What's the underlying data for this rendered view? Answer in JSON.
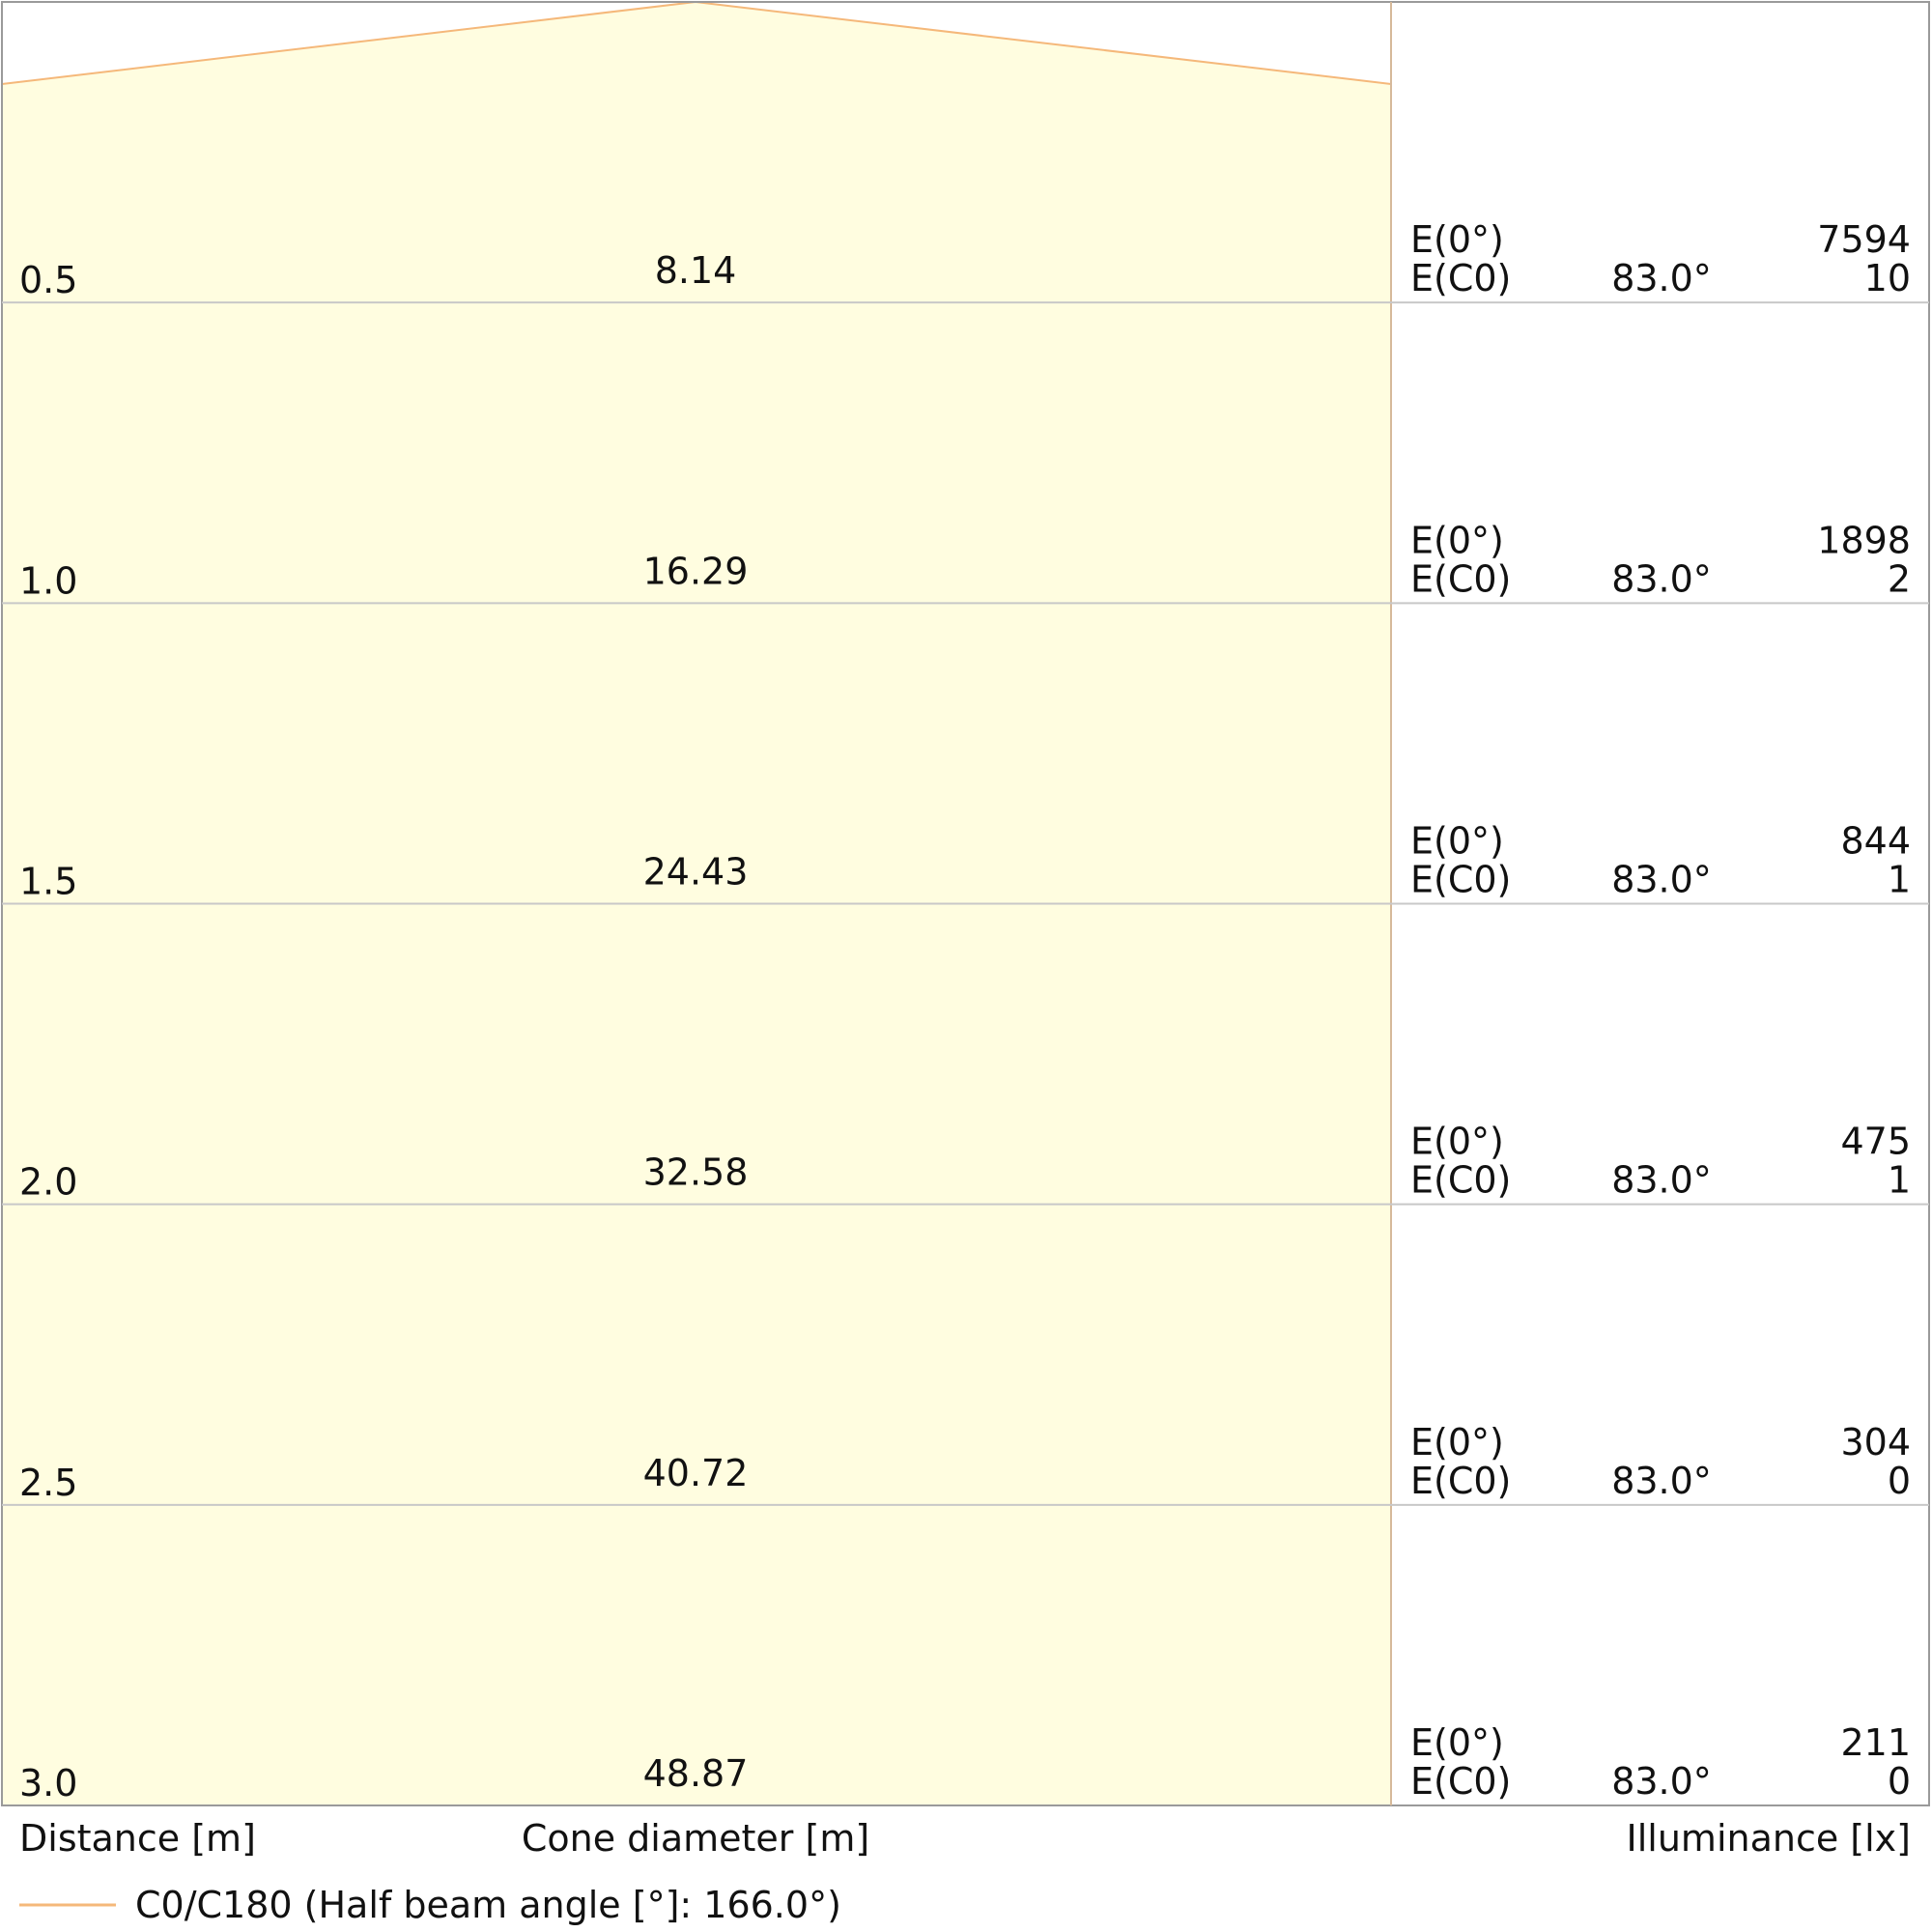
{
  "chart_data": {
    "type": "table",
    "rows": [
      {
        "distance": "0.5",
        "cone_diameter": "8.14",
        "e0_label": "E(0°)",
        "ec0_label": "E(C0)",
        "angle": "83.0°",
        "e0": "7594",
        "ec0": "10"
      },
      {
        "distance": "1.0",
        "cone_diameter": "16.29",
        "e0_label": "E(0°)",
        "ec0_label": "E(C0)",
        "angle": "83.0°",
        "e0": "1898",
        "ec0": "2"
      },
      {
        "distance": "1.5",
        "cone_diameter": "24.43",
        "e0_label": "E(0°)",
        "ec0_label": "E(C0)",
        "angle": "83.0°",
        "e0": "844",
        "ec0": "1"
      },
      {
        "distance": "2.0",
        "cone_diameter": "32.58",
        "e0_label": "E(0°)",
        "ec0_label": "E(C0)",
        "angle": "83.0°",
        "e0": "475",
        "ec0": "1"
      },
      {
        "distance": "2.5",
        "cone_diameter": "40.72",
        "e0_label": "E(0°)",
        "ec0_label": "E(C0)",
        "angle": "83.0°",
        "e0": "304",
        "ec0": "0"
      },
      {
        "distance": "3.0",
        "cone_diameter": "48.87",
        "e0_label": "E(0°)",
        "ec0_label": "E(C0)",
        "angle": "83.0°",
        "e0": "211",
        "ec0": "0"
      }
    ],
    "column_labels": {
      "distance": "Distance [m]",
      "cone_diameter": "Cone diameter [m]",
      "illuminance": "Illuminance [lx]"
    },
    "legend": {
      "label": "C0/C180 (Half beam angle [°]: 166.0°)",
      "color": "#f5b87a"
    },
    "half_beam_angle_deg": 166.0,
    "cone_fill_color": "#fffde0",
    "cone_edge_color": "#f5b87a",
    "grid_color": "#c8c8c8"
  }
}
